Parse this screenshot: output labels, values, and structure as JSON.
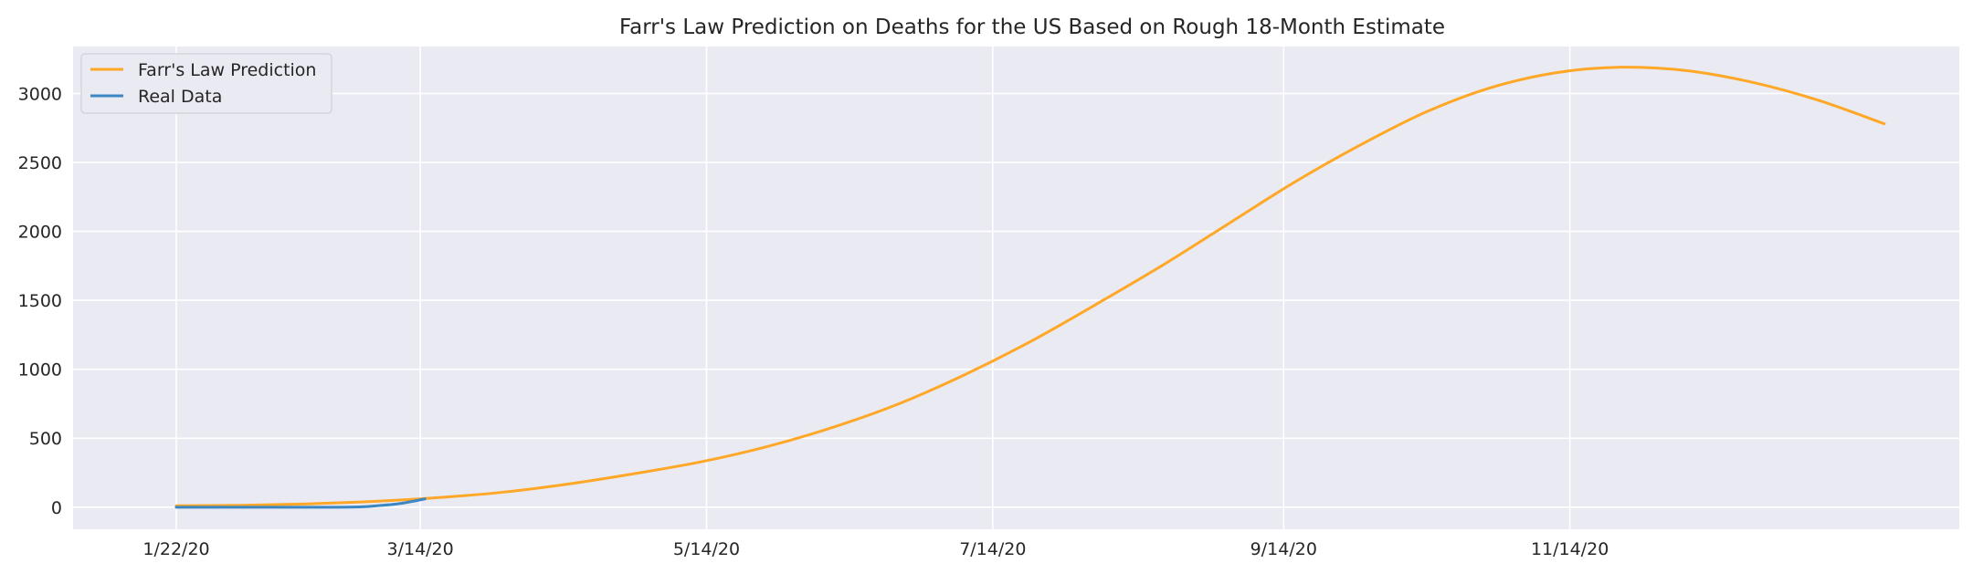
{
  "chart_data": {
    "type": "line",
    "title": "Farr's Law Prediction on Deaths for the US Based on Rough 18-Month Estimate",
    "xlabel": "",
    "ylabel": "",
    "x_tick_labels": [
      "1/22/20",
      "3/14/20",
      "5/14/20",
      "7/14/20",
      "9/14/20",
      "11/14/20"
    ],
    "x_tick_dates": [
      "2020-01-22",
      "2020-03-14",
      "2020-05-14",
      "2020-07-14",
      "2020-09-14",
      "2020-11-14"
    ],
    "xlim": [
      "2019-12-31",
      "2021-02-05"
    ],
    "y_ticks": [
      0,
      500,
      1000,
      1500,
      2000,
      2500,
      3000
    ],
    "ylim": [
      -160,
      3340
    ],
    "grid": true,
    "legend_position": "top-left",
    "series": [
      {
        "name": "Farr's Law Prediction",
        "color": "#ffa726",
        "x": [
          "2020-01-22",
          "2020-02-05",
          "2020-02-19",
          "2020-03-04",
          "2020-03-18",
          "2020-04-01",
          "2020-04-15",
          "2020-04-29",
          "2020-05-13",
          "2020-05-27",
          "2020-06-10",
          "2020-06-24",
          "2020-07-08",
          "2020-07-22",
          "2020-08-05",
          "2020-08-19",
          "2020-09-02",
          "2020-09-16",
          "2020-09-30",
          "2020-10-14",
          "2020-10-28",
          "2020-11-11",
          "2020-11-25",
          "2020-12-09",
          "2020-12-23",
          "2021-01-06",
          "2021-01-20"
        ],
        "y": [
          10,
          14,
          24,
          42,
          70,
          110,
          170,
          245,
          330,
          440,
          580,
          750,
          960,
          1200,
          1470,
          1750,
          2050,
          2350,
          2620,
          2860,
          3040,
          3150,
          3190,
          3165,
          3080,
          2950,
          2780
        ]
      },
      {
        "name": "Real Data",
        "color": "#3a87c4",
        "x": [
          "2020-01-22",
          "2020-02-01",
          "2020-02-15",
          "2020-02-29",
          "2020-03-05",
          "2020-03-10",
          "2020-03-15"
        ],
        "y": [
          0,
          0,
          0,
          1,
          11,
          28,
          60
        ]
      }
    ]
  }
}
